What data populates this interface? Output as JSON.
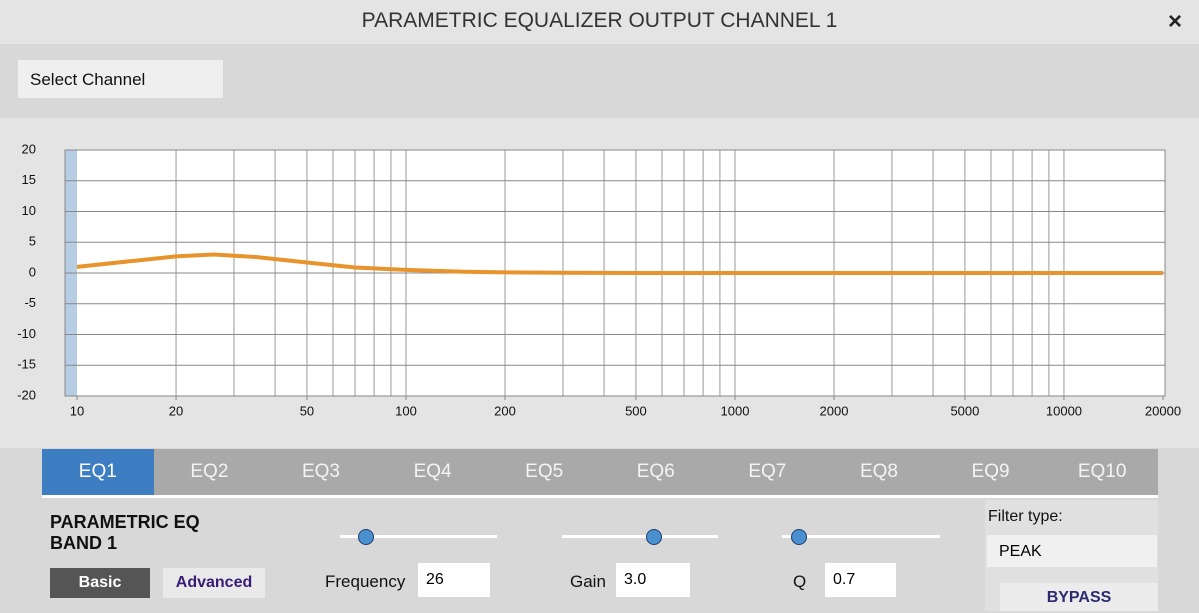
{
  "header": {
    "title": "PARAMETRIC EQUALIZER OUTPUT CHANNEL 1",
    "close": "×"
  },
  "select_channel": "Select Channel",
  "chart_data": {
    "type": "line",
    "x": [
      10,
      15,
      20,
      26,
      35,
      50,
      70,
      100,
      150,
      200,
      300,
      500,
      1000,
      20000
    ],
    "values": [
      1.0,
      2.0,
      2.7,
      3.0,
      2.6,
      1.7,
      0.9,
      0.5,
      0.2,
      0.1,
      0.05,
      0,
      0,
      0
    ],
    "color": "#e8942c",
    "xlim": [
      10,
      20000
    ],
    "ylim": [
      -20,
      20
    ],
    "log_x": true,
    "grid": true,
    "xticks": [
      10,
      20,
      50,
      100,
      200,
      500,
      1000,
      2000,
      5000,
      10000,
      20000
    ],
    "yticks": [
      20,
      15,
      10,
      5,
      0,
      -5,
      -10,
      -15,
      -20
    ],
    "xgrid": [
      20,
      30,
      40,
      50,
      60,
      70,
      80,
      90,
      100,
      200,
      300,
      400,
      500,
      600,
      700,
      800,
      900,
      1000,
      2000,
      3000,
      4000,
      5000,
      6000,
      7000,
      8000,
      9000,
      10000
    ]
  },
  "tabs": [
    "EQ1",
    "EQ2",
    "EQ3",
    "EQ4",
    "EQ5",
    "EQ6",
    "EQ7",
    "EQ8",
    "EQ9",
    "EQ10"
  ],
  "active_tab": 0,
  "band": {
    "title": [
      "PARAMETRIC EQ",
      "BAND 1"
    ],
    "modes": [
      "Basic",
      "Advanced"
    ]
  },
  "controls": [
    {
      "label": "Frequency",
      "value": "26"
    },
    {
      "label": "Gain",
      "value": "3.0"
    },
    {
      "label": "Q",
      "value": "0.7"
    }
  ],
  "filter": {
    "label": "Filter type:",
    "value": "PEAK"
  },
  "bypass": "BYPASS"
}
